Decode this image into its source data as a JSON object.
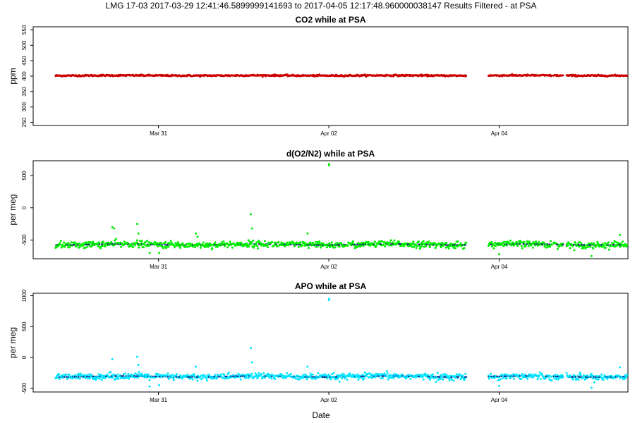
{
  "page_title": "LMG   17-03    2017-03-29 12:41:46.5899999141693 to 2017-04-05 12:17:48.960000038147    Results Filtered - at PSA",
  "x_axis_label": "Date",
  "colors": {
    "co2": "#cc0000",
    "o2n2": "#00ee00",
    "apo": "#00e5ff",
    "median_dot": "#1a1a80"
  },
  "chart_data": [
    {
      "type": "scatter",
      "title": "CO2 while at PSA",
      "ylabel": "ppm",
      "xlim": [
        "2017-03-29T12:41",
        "2017-04-05T12:17"
      ],
      "ylim": [
        240,
        560
      ],
      "yticks": [
        250,
        300,
        350,
        400,
        450,
        500,
        550
      ],
      "xticks": [
        {
          "date": "2017-03-31T00:00",
          "label": "Mar 31"
        },
        {
          "date": "2017-04-02T00:00",
          "label": "Apr 02"
        },
        {
          "date": "2017-04-04T00:00",
          "label": "Apr 04"
        }
      ],
      "series": [
        {
          "color": "#cc0000",
          "baseline": 402,
          "noise": 1.2,
          "segments": [
            [
              "2017-03-29T19:00",
              "2017-04-01T11:30"
            ],
            [
              "2017-04-01T11:40",
              "2017-04-03T14:40"
            ],
            [
              "2017-04-03T21:00",
              "2017-04-04T14:50"
            ],
            [
              "2017-04-04T15:20",
              "2017-04-04T18:00"
            ],
            [
              "2017-04-04T19:00",
              "2017-04-05T12:00"
            ]
          ]
        }
      ],
      "outliers": []
    },
    {
      "type": "scatter",
      "title": "d(O2/N2) while at PSA",
      "ylabel": "per meg",
      "xlim": [
        "2017-03-29T12:41",
        "2017-04-05T12:17"
      ],
      "ylim": [
        -790,
        730
      ],
      "yticks": [
        -500,
        0,
        500
      ],
      "xticks": [
        {
          "date": "2017-03-31T00:00",
          "label": "Mar 31"
        },
        {
          "date": "2017-04-02T00:00",
          "label": "Apr 02"
        },
        {
          "date": "2017-04-04T00:00",
          "label": "Apr 04"
        }
      ],
      "series": [
        {
          "color": "#00ee00",
          "baseline": -570,
          "noise": 25,
          "segments": [
            [
              "2017-03-29T19:00",
              "2017-04-01T11:30"
            ],
            [
              "2017-04-01T11:40",
              "2017-04-03T14:40"
            ],
            [
              "2017-04-03T21:00",
              "2017-04-04T14:50"
            ],
            [
              "2017-04-04T15:20",
              "2017-04-04T18:00"
            ],
            [
              "2017-04-04T19:00",
              "2017-04-05T12:00"
            ]
          ]
        }
      ],
      "outliers": [
        {
          "x": "2017-04-02T00:00",
          "y": 660
        },
        {
          "x": "2017-04-02T00:05",
          "y": 680
        },
        {
          "x": "2017-03-30T11:00",
          "y": -300
        },
        {
          "x": "2017-03-30T11:30",
          "y": -320
        },
        {
          "x": "2017-03-30T18:00",
          "y": -250
        },
        {
          "x": "2017-03-30T18:20",
          "y": -400
        },
        {
          "x": "2017-03-31T10:30",
          "y": -400
        },
        {
          "x": "2017-03-31T11:00",
          "y": -450
        },
        {
          "x": "2017-04-01T02:00",
          "y": -100
        },
        {
          "x": "2017-04-01T02:20",
          "y": -320
        },
        {
          "x": "2017-04-01T18:00",
          "y": -400
        },
        {
          "x": "2017-03-30T21:30",
          "y": -700
        },
        {
          "x": "2017-04-04T00:00",
          "y": -720
        },
        {
          "x": "2017-04-05T02:00",
          "y": -750
        },
        {
          "x": "2017-04-05T10:00",
          "y": -420
        },
        {
          "x": "2017-03-31T00:10",
          "y": -700
        }
      ]
    },
    {
      "type": "scatter",
      "title": "APO while at PSA",
      "ylabel": "per meg",
      "xlim": [
        "2017-03-29T12:41",
        "2017-04-05T12:17"
      ],
      "ylim": [
        -560,
        1040
      ],
      "yticks": [
        -500,
        0,
        500,
        1000
      ],
      "xticks": [
        {
          "date": "2017-03-31T00:00",
          "label": "Mar 31"
        },
        {
          "date": "2017-04-02T00:00",
          "label": "Apr 02"
        },
        {
          "date": "2017-04-04T00:00",
          "label": "Apr 04"
        }
      ],
      "series": [
        {
          "color": "#00e5ff",
          "baseline": -310,
          "noise": 25,
          "segments": [
            [
              "2017-03-29T19:00",
              "2017-04-01T11:30"
            ],
            [
              "2017-04-01T11:40",
              "2017-04-03T14:40"
            ],
            [
              "2017-04-03T21:00",
              "2017-04-04T14:50"
            ],
            [
              "2017-04-04T15:20",
              "2017-04-04T18:00"
            ],
            [
              "2017-04-04T19:00",
              "2017-04-05T12:00"
            ]
          ]
        }
      ],
      "outliers": [
        {
          "x": "2017-04-02T00:00",
          "y": 930
        },
        {
          "x": "2017-04-02T00:05",
          "y": 950
        },
        {
          "x": "2017-03-30T11:00",
          "y": -30
        },
        {
          "x": "2017-03-30T18:00",
          "y": 10
        },
        {
          "x": "2017-03-30T18:20",
          "y": -120
        },
        {
          "x": "2017-03-31T10:30",
          "y": -150
        },
        {
          "x": "2017-04-01T02:00",
          "y": 150
        },
        {
          "x": "2017-04-01T02:20",
          "y": -80
        },
        {
          "x": "2017-04-01T18:00",
          "y": -150
        },
        {
          "x": "2017-03-30T21:30",
          "y": -470
        },
        {
          "x": "2017-04-04T00:00",
          "y": -460
        },
        {
          "x": "2017-04-05T02:00",
          "y": -490
        },
        {
          "x": "2017-04-05T10:00",
          "y": -160
        },
        {
          "x": "2017-03-31T00:10",
          "y": -450
        }
      ]
    }
  ]
}
